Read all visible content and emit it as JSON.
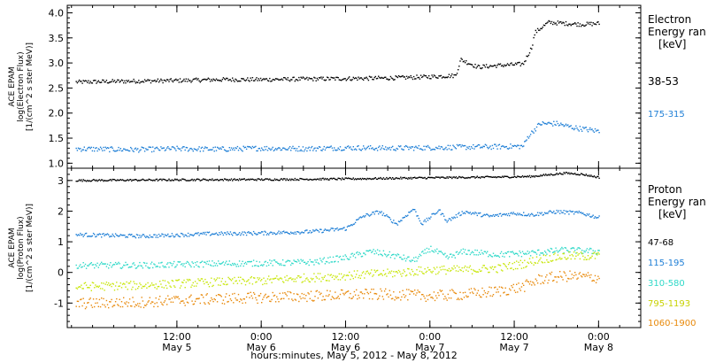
{
  "x_axis": {
    "title": "hours:minutes, May  5, 2012 - May  8, 2012",
    "ticks": [
      {
        "t": 0.5,
        "time": "12:00",
        "date": "May 5"
      },
      {
        "t": 1.0,
        "time": "0:00",
        "date": "May 6"
      },
      {
        "t": 1.5,
        "time": "12:00",
        "date": "May 6"
      },
      {
        "t": 2.0,
        "time": "0:00",
        "date": "May 7"
      },
      {
        "t": 2.5,
        "time": "12:00",
        "date": "May 7"
      },
      {
        "t": 3.0,
        "time": "0:00",
        "date": "May 8"
      }
    ]
  },
  "chart_data": [
    {
      "type": "scatter",
      "panel": "electron",
      "ylabel_lines": [
        "ACE EPAM",
        "log(Electron Flux)",
        "[1/(cm^2 s ster MeV)]"
      ],
      "ylim": [
        0.9,
        4.15
      ],
      "yticks": [
        "1.0",
        "1.5",
        "2.0",
        "2.5",
        "3.0",
        "3.5",
        "4.0"
      ],
      "ytick_values": [
        1.0,
        1.5,
        2.0,
        2.5,
        3.0,
        3.5,
        4.0
      ],
      "xlim_days": [
        -0.15,
        3.25
      ],
      "legend_title_lines": [
        "Electron",
        "Energy ran",
        "[keV]"
      ],
      "series": [
        {
          "name": "38-53",
          "color": "#000000",
          "x": [
            -0.1,
            0.25,
            0.5,
            0.75,
            1.0,
            1.25,
            1.5,
            1.75,
            1.95,
            2.15,
            2.18,
            2.28,
            2.4,
            2.55,
            2.6,
            2.62,
            2.7,
            2.8,
            2.9,
            3.0
          ],
          "y": [
            2.63,
            2.65,
            2.66,
            2.68,
            2.68,
            2.69,
            2.7,
            2.71,
            2.73,
            2.76,
            3.08,
            2.93,
            2.96,
            2.99,
            3.32,
            3.62,
            3.82,
            3.8,
            3.78,
            3.8
          ]
        },
        {
          "name": "175-315",
          "color": "#1f7fd6",
          "x": [
            -0.1,
            0.25,
            0.5,
            0.75,
            1.0,
            1.25,
            1.5,
            1.75,
            1.95,
            2.15,
            2.4,
            2.55,
            2.58,
            2.65,
            2.75,
            2.85,
            3.0
          ],
          "y": [
            1.3,
            1.28,
            1.3,
            1.29,
            1.31,
            1.3,
            1.32,
            1.31,
            1.32,
            1.33,
            1.34,
            1.35,
            1.55,
            1.8,
            1.8,
            1.72,
            1.65
          ]
        }
      ]
    },
    {
      "type": "scatter",
      "panel": "proton",
      "ylabel_lines": [
        "ACE EPAM",
        "log(Proton Flux)",
        "[1/(cm^2 s ster MeV)]"
      ],
      "ylim": [
        -1.8,
        3.4
      ],
      "yticks": [
        "-1",
        "0",
        "1",
        "2",
        "3"
      ],
      "ytick_values": [
        -1,
        0,
        1,
        2,
        3
      ],
      "xlim_days": [
        -0.15,
        3.25
      ],
      "legend_title_lines": [
        "Proton",
        "Energy ran",
        "[keV]"
      ],
      "series": [
        {
          "name": "47-68",
          "color": "#000000",
          "x": [
            -0.1,
            0.5,
            1.0,
            1.5,
            1.9,
            2.2,
            2.4,
            2.6,
            2.8,
            2.9,
            3.0
          ],
          "y": [
            3.02,
            3.04,
            3.05,
            3.07,
            3.1,
            3.12,
            3.13,
            3.15,
            3.26,
            3.22,
            3.12
          ]
        },
        {
          "name": "115-195",
          "color": "#1f7fd6",
          "x": [
            -0.1,
            0.3,
            0.7,
            1.0,
            1.3,
            1.5,
            1.6,
            1.7,
            1.8,
            1.9,
            1.95,
            2.05,
            2.1,
            2.2,
            2.35,
            2.5,
            2.6,
            2.75,
            2.9,
            3.0
          ],
          "y": [
            1.25,
            1.2,
            1.28,
            1.3,
            1.35,
            1.45,
            1.85,
            2.0,
            1.6,
            2.1,
            1.6,
            2.05,
            1.7,
            2.0,
            1.85,
            1.95,
            1.9,
            2.0,
            1.95,
            1.8
          ]
        },
        {
          "name": "310-580",
          "color": "#2fd9c8",
          "x": [
            -0.1,
            0.3,
            0.7,
            1.0,
            1.3,
            1.5,
            1.65,
            1.8,
            1.9,
            2.0,
            2.1,
            2.2,
            2.4,
            2.6,
            2.8,
            3.0
          ],
          "y": [
            0.25,
            0.25,
            0.3,
            0.32,
            0.35,
            0.5,
            0.7,
            0.55,
            0.4,
            0.8,
            0.5,
            0.7,
            0.6,
            0.65,
            0.75,
            0.7
          ]
        },
        {
          "name": "795-1193",
          "color": "#c8e60a",
          "x": [
            -0.1,
            0.3,
            0.7,
            1.0,
            1.3,
            1.6,
            1.8,
            2.0,
            2.2,
            2.4,
            2.55,
            2.65,
            2.8,
            3.0
          ],
          "y": [
            -0.45,
            -0.4,
            -0.3,
            -0.25,
            -0.15,
            -0.05,
            0.0,
            0.1,
            0.1,
            0.15,
            0.3,
            0.45,
            0.55,
            0.55
          ]
        },
        {
          "name": "1060-1900",
          "color": "#e8890a",
          "x": [
            -0.1,
            0.3,
            0.7,
            1.0,
            1.3,
            1.6,
            1.8,
            2.0,
            2.2,
            2.4,
            2.55,
            2.65,
            2.8,
            3.0
          ],
          "y": [
            -1.0,
            -0.95,
            -0.85,
            -0.8,
            -0.75,
            -0.7,
            -0.7,
            -0.75,
            -0.7,
            -0.6,
            -0.45,
            -0.2,
            -0.1,
            -0.15
          ]
        }
      ]
    }
  ]
}
